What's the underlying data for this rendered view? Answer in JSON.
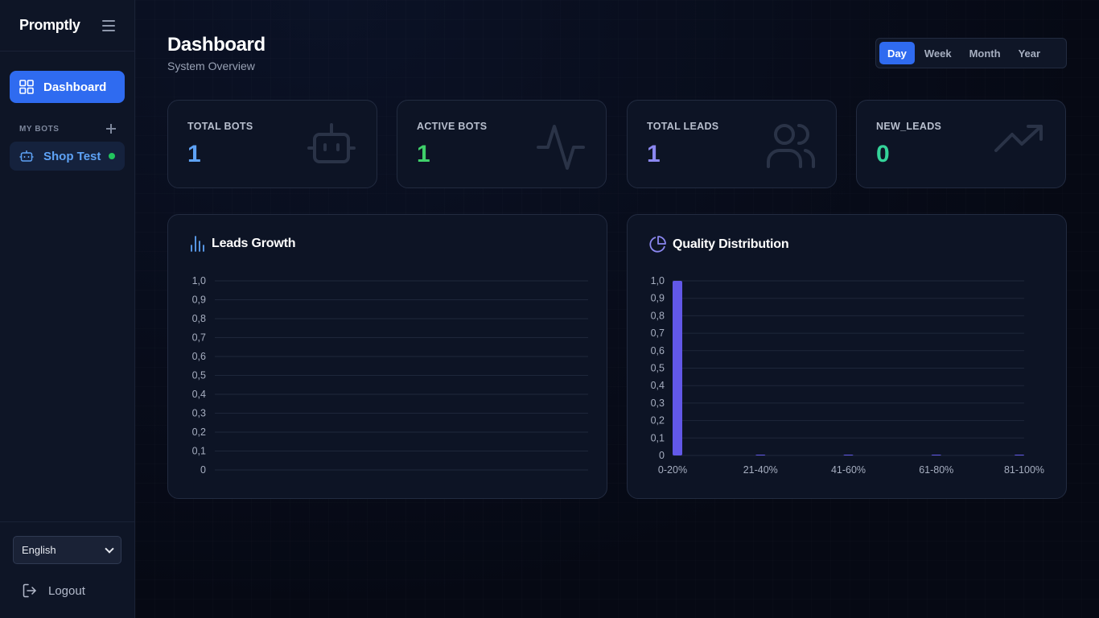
{
  "app": {
    "brand": "Promptly"
  },
  "sidebar": {
    "nav": {
      "dashboard_label": "Dashboard"
    },
    "my_bots_title": "MY BOTS",
    "bots": [
      {
        "name": "Shop Test",
        "status": "online"
      }
    ],
    "language": "English",
    "logout_label": "Logout"
  },
  "header": {
    "title": "Dashboard",
    "subtitle": "System Overview",
    "ranges": [
      "Day",
      "Week",
      "Month",
      "Year"
    ],
    "active_range": "Day"
  },
  "stats": [
    {
      "label": "TOTAL BOTS",
      "value": "1",
      "color": "#5ea2f5",
      "icon": "robot-icon"
    },
    {
      "label": "ACTIVE BOTS",
      "value": "1",
      "color": "#3fd06a",
      "icon": "activity-icon"
    },
    {
      "label": "TOTAL LEADS",
      "value": "1",
      "color": "#8b87f0",
      "icon": "users-icon"
    },
    {
      "label": "NEW_LEADS",
      "value": "0",
      "color": "#34d399",
      "icon": "trending-up-icon"
    }
  ],
  "chart_data": [
    {
      "type": "line",
      "title": "Leads Growth",
      "x": [],
      "series": [
        {
          "values": []
        }
      ],
      "ylim": [
        0,
        1.0
      ],
      "yticks": [
        "1,0",
        "0,9",
        "0,8",
        "0,7",
        "0,6",
        "0,5",
        "0,4",
        "0,3",
        "0,2",
        "0,1",
        "0"
      ],
      "grid": true
    },
    {
      "type": "bar",
      "title": "Quality Distribution",
      "categories": [
        "0-20%",
        "21-40%",
        "41-60%",
        "61-80%",
        "81-100%"
      ],
      "values": [
        1,
        0,
        0,
        0,
        0
      ],
      "ylim": [
        0,
        1.0
      ],
      "yticks": [
        "1,0",
        "0,9",
        "0,8",
        "0,7",
        "0,6",
        "0,5",
        "0,4",
        "0,3",
        "0,2",
        "0,1",
        "0"
      ],
      "bar_color": "#6258e8",
      "grid": true
    }
  ]
}
